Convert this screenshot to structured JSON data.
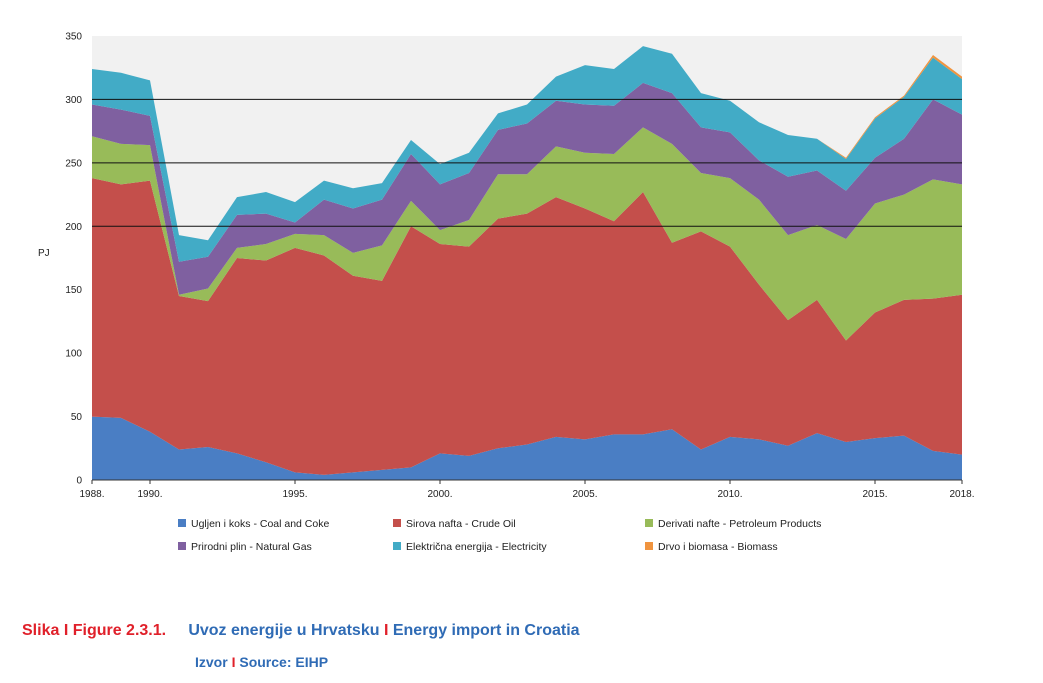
{
  "chart_data": {
    "type": "area",
    "stacked": true,
    "ylabel": "PJ",
    "ylim": [
      0,
      350
    ],
    "yticks": [
      0,
      50,
      100,
      150,
      200,
      250,
      300,
      350
    ],
    "xlim": [
      1988,
      2018
    ],
    "xtick_values": [
      1988,
      1990,
      1995,
      2000,
      2005,
      2010,
      2015,
      2018
    ],
    "xtick_labels": [
      "1988.",
      "1990.",
      "1995.",
      "2000.",
      "2005.",
      "2010.",
      "2015.",
      "2018."
    ],
    "gridlines_at": [
      200,
      250,
      300
    ],
    "x": [
      1988,
      1989,
      1990,
      1991,
      1992,
      1993,
      1994,
      1995,
      1996,
      1997,
      1998,
      1999,
      2000,
      2001,
      2002,
      2003,
      2004,
      2005,
      2006,
      2007,
      2008,
      2009,
      2010,
      2011,
      2012,
      2013,
      2014,
      2015,
      2016,
      2017,
      2018
    ],
    "series": [
      {
        "name": "Ugljen i koks - Coal and Coke",
        "color": "#4a7ec4",
        "values": [
          50,
          49,
          38,
          24,
          26,
          21,
          14,
          6,
          4,
          6,
          8,
          10,
          21,
          19,
          25,
          28,
          34,
          32,
          36,
          36,
          40,
          24,
          34,
          32,
          27,
          37,
          30,
          33,
          35,
          23,
          20
        ]
      },
      {
        "name": "Sirova nafta - Crude Oil",
        "color": "#c44f4b",
        "values": [
          188,
          184,
          198,
          121,
          115,
          154,
          159,
          177,
          173,
          155,
          149,
          190,
          165,
          165,
          181,
          182,
          189,
          182,
          168,
          191,
          147,
          172,
          150,
          122,
          99,
          105,
          80,
          99,
          107,
          120,
          126
        ]
      },
      {
        "name": "Derivati nafte - Petroleum Products",
        "color": "#98bb59",
        "values": [
          33,
          32,
          28,
          1,
          10,
          8,
          13,
          11,
          16,
          18,
          28,
          20,
          11,
          21,
          35,
          31,
          40,
          44,
          53,
          51,
          78,
          46,
          54,
          67,
          67,
          59,
          80,
          86,
          83,
          94,
          87
        ]
      },
      {
        "name": "Prirodni plin - Natural Gas",
        "color": "#7f60a0",
        "values": [
          25,
          27,
          23,
          26,
          25,
          26,
          24,
          9,
          28,
          35,
          36,
          37,
          36,
          37,
          35,
          40,
          36,
          38,
          38,
          35,
          40,
          36,
          36,
          31,
          46,
          43,
          38,
          36,
          44,
          63,
          55
        ]
      },
      {
        "name": "Električna energija - Electricity",
        "color": "#42abc6",
        "values": [
          28,
          29,
          28,
          21,
          13,
          14,
          17,
          16,
          15,
          16,
          13,
          11,
          16,
          16,
          13,
          15,
          19,
          31,
          29,
          29,
          31,
          27,
          25,
          30,
          33,
          25,
          25,
          31,
          33,
          33,
          28
        ]
      },
      {
        "name": "Drvo i biomasa - Biomass",
        "color": "#f0943f",
        "values": [
          0,
          0,
          0,
          0,
          0,
          0,
          0,
          0,
          0,
          0,
          0,
          0,
          0,
          0,
          0,
          0,
          0,
          0,
          0,
          0,
          0,
          0,
          0,
          0,
          0,
          0,
          1,
          1,
          1,
          2,
          2
        ]
      }
    ],
    "legend_position": "bottom"
  },
  "caption": {
    "slika": "Slika",
    "sep1": "I",
    "figure": "Figure 2.3.1.",
    "title_hr": "Uvoz energije u Hrvatsku",
    "sep2": "I",
    "title_en": "Energy import in Croatia"
  },
  "source": {
    "izvor": "Izvor",
    "sep": "I",
    "text": "Source: EIHP"
  }
}
